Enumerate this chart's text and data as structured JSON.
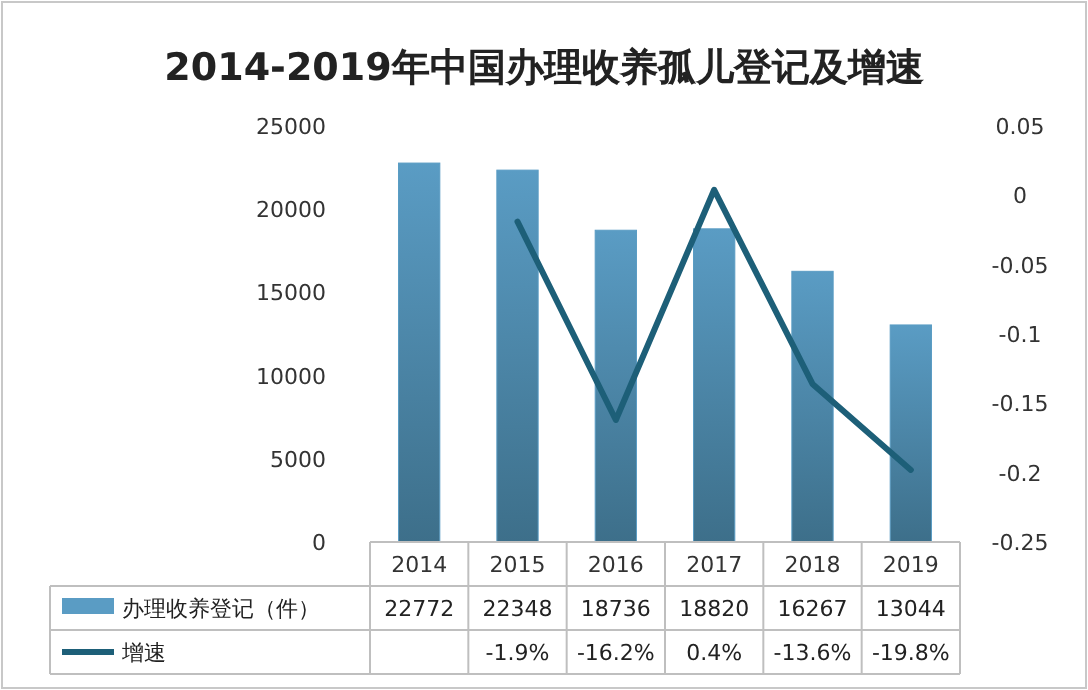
{
  "chart_data": {
    "type": "bar",
    "title": "2014-2019年中国办理收养孤儿登记及增速",
    "categories": [
      "2014",
      "2015",
      "2016",
      "2017",
      "2018",
      "2019"
    ],
    "series": [
      {
        "name": "办理收养登记（件）",
        "color": "#5a9cc4",
        "values": [
          22772,
          22348,
          18736,
          18820,
          16267,
          13044
        ],
        "value_labels": [
          "22772",
          "22348",
          "18736",
          "18820",
          "16267",
          "13044"
        ]
      },
      {
        "name": "增速",
        "type": "line",
        "axis": "y2",
        "color": "#1d5f78",
        "values": [
          null,
          -0.019,
          -0.162,
          0.004,
          -0.136,
          -0.198
        ],
        "value_labels": [
          null,
          "-1.9%",
          "-16.2%",
          "0.4%",
          "-13.6%",
          "-19.8%"
        ]
      }
    ],
    "ylim": [
      0,
      25000
    ],
    "yticks": [
      0,
      5000,
      10000,
      15000,
      20000,
      25000
    ],
    "y2lim": [
      -0.25,
      0.05
    ],
    "y2ticks": [
      -0.25,
      -0.2,
      -0.15,
      -0.1,
      -0.05,
      0,
      0.05
    ],
    "legend": "bottom"
  }
}
